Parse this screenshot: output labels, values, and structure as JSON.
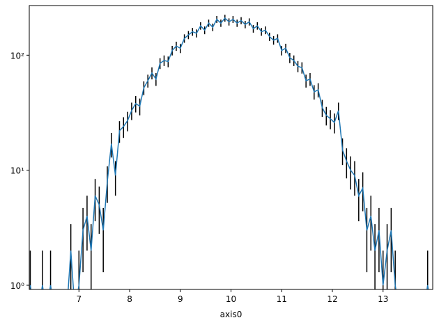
{
  "chart_data": {
    "type": "line",
    "xlabel": "axis0",
    "color": "#1f77b4",
    "error_color": "#000000",
    "log_y": true,
    "x": [
      6.04,
      6.12,
      6.2,
      6.28,
      6.36,
      6.44,
      6.52,
      6.6,
      6.68,
      6.76,
      6.84,
      6.92,
      7,
      7.08,
      7.16,
      7.24,
      7.32,
      7.4,
      7.48,
      7.56,
      7.64,
      7.72,
      7.8,
      7.88,
      7.96,
      8.04,
      8.12,
      8.2,
      8.28,
      8.36,
      8.44,
      8.52,
      8.6,
      8.68,
      8.76,
      8.84,
      8.92,
      9,
      9.08,
      9.16,
      9.24,
      9.32,
      9.4,
      9.48,
      9.56,
      9.64,
      9.72,
      9.8,
      9.88,
      9.96,
      10.04,
      10.12,
      10.2,
      10.28,
      10.36,
      10.44,
      10.52,
      10.6,
      10.68,
      10.76,
      10.84,
      10.92,
      11,
      11.08,
      11.16,
      11.24,
      11.32,
      11.4,
      11.48,
      11.56,
      11.64,
      11.72,
      11.8,
      11.88,
      11.96,
      12.04,
      12.12,
      12.2,
      12.28,
      12.36,
      12.44,
      12.52,
      12.6,
      12.68,
      12.76,
      12.84,
      12.92,
      13,
      13.08,
      13.16,
      13.24,
      13.32,
      13.4,
      13.48,
      13.56,
      13.64,
      13.72,
      13.8,
      13.88,
      13.96
    ],
    "values": [
      1,
      0,
      0,
      1,
      0,
      1,
      0,
      0,
      0,
      0,
      2,
      0,
      1,
      3,
      4,
      2,
      6,
      5,
      3,
      8,
      17,
      9,
      22,
      24,
      27,
      33,
      38,
      36,
      52,
      60,
      70,
      62,
      85,
      90,
      88,
      110,
      120,
      115,
      140,
      150,
      160,
      155,
      180,
      165,
      190,
      175,
      205,
      190,
      210,
      195,
      205,
      190,
      200,
      185,
      195,
      170,
      180,
      160,
      165,
      145,
      135,
      140,
      110,
      115,
      95,
      90,
      80,
      78,
      60,
      62,
      48,
      50,
      35,
      30,
      28,
      26,
      33,
      15,
      12,
      10,
      9,
      6,
      7,
      3,
      4,
      2,
      3,
      1,
      2,
      3,
      1,
      0,
      0,
      0,
      0,
      0,
      0,
      0,
      1,
      0
    ],
    "errors": [
      1,
      0,
      0,
      1,
      0,
      1,
      0,
      0,
      0,
      0,
      1.4,
      0,
      1,
      1.7,
      2,
      1.4,
      2.4,
      2.2,
      1.7,
      2.8,
      4.1,
      3,
      4.7,
      4.9,
      5.2,
      5.7,
      6.2,
      6,
      7.2,
      7.7,
      8.4,
      7.9,
      9.2,
      9.5,
      9.4,
      10.5,
      11,
      10.7,
      11.8,
      12.2,
      12.6,
      12.4,
      13.4,
      12.8,
      13.8,
      13.2,
      14.3,
      13.8,
      14.5,
      14,
      14.3,
      13.8,
      14.1,
      13.6,
      14,
      13,
      13.4,
      12.6,
      12.8,
      12,
      11.6,
      11.8,
      10.5,
      10.7,
      9.7,
      9.5,
      8.9,
      8.8,
      7.7,
      7.9,
      6.9,
      7.1,
      5.9,
      5.5,
      5.3,
      5.1,
      5.7,
      3.9,
      3.5,
      3.2,
      3,
      2.4,
      2.6,
      1.7,
      2,
      1.4,
      1.7,
      1,
      1.4,
      1.7,
      1,
      0,
      0,
      0,
      0,
      0,
      0,
      0,
      1,
      0
    ],
    "xlim": [
      6.02,
      13.98
    ],
    "xticks": [
      7,
      8,
      9,
      10,
      11,
      12,
      13
    ],
    "ylim": [
      0.92,
      270
    ],
    "yticks": [
      {
        "value": 1,
        "label": "10⁰"
      },
      {
        "value": 10,
        "label": "10¹"
      },
      {
        "value": 100,
        "label": "10²"
      }
    ]
  }
}
